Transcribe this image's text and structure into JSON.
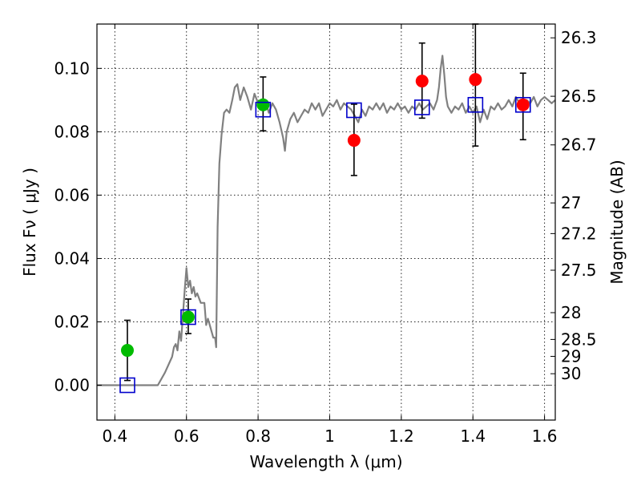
{
  "chart_data": {
    "type": "scatter",
    "xlabel": "Wavelength  λ (μm)",
    "ylabel": "Flux  Fν  ( μJy )",
    "ylabel_right": "Magnitude (AB)",
    "xlim": [
      0.35,
      1.63
    ],
    "ylim": [
      -0.011,
      0.114
    ],
    "x_ticks": [
      0.4,
      0.6,
      0.8,
      1.0,
      1.2,
      1.4,
      1.6
    ],
    "x_tick_labels": [
      "0.4",
      "0.6",
      "0.8",
      "1",
      "1.2",
      "1.4",
      "1.6"
    ],
    "y_ticks": [
      0.0,
      0.02,
      0.04,
      0.06,
      0.08,
      0.1
    ],
    "y_tick_labels": [
      "0.00",
      "0.02",
      "0.04",
      "0.06",
      "0.08",
      "0.10"
    ],
    "right_ticks": [
      {
        "label": "26.3",
        "mag": 26.3
      },
      {
        "label": "26.5",
        "mag": 26.5
      },
      {
        "label": "26.7",
        "mag": 26.7
      },
      {
        "label": "27",
        "mag": 27.0
      },
      {
        "label": "27.2",
        "mag": 27.2
      },
      {
        "label": "27.5",
        "mag": 27.5
      },
      {
        "label": "28",
        "mag": 28.0
      },
      {
        "label": "28.5",
        "mag": 28.5
      },
      {
        "label": "29",
        "mag": 29.0
      },
      {
        "label": "30",
        "mag": 30.0
      }
    ],
    "grid": true,
    "model_spectrum": {
      "color": "#808080",
      "points": [
        [
          0.35,
          0.0
        ],
        [
          0.52,
          0.0
        ],
        [
          0.54,
          0.004
        ],
        [
          0.56,
          0.009
        ],
        [
          0.565,
          0.012
        ],
        [
          0.57,
          0.013
        ],
        [
          0.575,
          0.011
        ],
        [
          0.58,
          0.017
        ],
        [
          0.585,
          0.014
        ],
        [
          0.59,
          0.022
        ],
        [
          0.595,
          0.03
        ],
        [
          0.6,
          0.037
        ],
        [
          0.605,
          0.031
        ],
        [
          0.61,
          0.033
        ],
        [
          0.615,
          0.029
        ],
        [
          0.62,
          0.031
        ],
        [
          0.625,
          0.028
        ],
        [
          0.63,
          0.029
        ],
        [
          0.64,
          0.026
        ],
        [
          0.65,
          0.026
        ],
        [
          0.655,
          0.019
        ],
        [
          0.66,
          0.021
        ],
        [
          0.665,
          0.019
        ],
        [
          0.67,
          0.017
        ],
        [
          0.675,
          0.015
        ],
        [
          0.68,
          0.015
        ],
        [
          0.683,
          0.012
        ],
        [
          0.687,
          0.05
        ],
        [
          0.692,
          0.07
        ],
        [
          0.698,
          0.079
        ],
        [
          0.705,
          0.086
        ],
        [
          0.712,
          0.087
        ],
        [
          0.72,
          0.086
        ],
        [
          0.728,
          0.09
        ],
        [
          0.735,
          0.094
        ],
        [
          0.742,
          0.095
        ],
        [
          0.75,
          0.09
        ],
        [
          0.76,
          0.094
        ],
        [
          0.77,
          0.091
        ],
        [
          0.78,
          0.087
        ],
        [
          0.79,
          0.092
        ],
        [
          0.8,
          0.089
        ],
        [
          0.81,
          0.087
        ],
        [
          0.82,
          0.09
        ],
        [
          0.83,
          0.086
        ],
        [
          0.84,
          0.089
        ],
        [
          0.85,
          0.087
        ],
        [
          0.86,
          0.083
        ],
        [
          0.87,
          0.078
        ],
        [
          0.875,
          0.074
        ],
        [
          0.88,
          0.08
        ],
        [
          0.89,
          0.084
        ],
        [
          0.9,
          0.086
        ],
        [
          0.91,
          0.083
        ],
        [
          0.92,
          0.085
        ],
        [
          0.93,
          0.087
        ],
        [
          0.94,
          0.086
        ],
        [
          0.95,
          0.089
        ],
        [
          0.96,
          0.087
        ],
        [
          0.97,
          0.089
        ],
        [
          0.98,
          0.085
        ],
        [
          0.99,
          0.087
        ],
        [
          1.0,
          0.089
        ],
        [
          1.01,
          0.088
        ],
        [
          1.02,
          0.09
        ],
        [
          1.03,
          0.087
        ],
        [
          1.04,
          0.089
        ],
        [
          1.05,
          0.088
        ],
        [
          1.06,
          0.087
        ],
        [
          1.07,
          0.085
        ],
        [
          1.08,
          0.083
        ],
        [
          1.09,
          0.087
        ],
        [
          1.1,
          0.085
        ],
        [
          1.11,
          0.088
        ],
        [
          1.12,
          0.087
        ],
        [
          1.13,
          0.089
        ],
        [
          1.14,
          0.087
        ],
        [
          1.15,
          0.089
        ],
        [
          1.16,
          0.086
        ],
        [
          1.17,
          0.088
        ],
        [
          1.18,
          0.087
        ],
        [
          1.19,
          0.089
        ],
        [
          1.2,
          0.087
        ],
        [
          1.21,
          0.088
        ],
        [
          1.22,
          0.086
        ],
        [
          1.23,
          0.088
        ],
        [
          1.24,
          0.087
        ],
        [
          1.25,
          0.089
        ],
        [
          1.26,
          0.087
        ],
        [
          1.27,
          0.088
        ],
        [
          1.28,
          0.089
        ],
        [
          1.29,
          0.087
        ],
        [
          1.3,
          0.09
        ],
        [
          1.305,
          0.094
        ],
        [
          1.31,
          0.1
        ],
        [
          1.315,
          0.104
        ],
        [
          1.32,
          0.098
        ],
        [
          1.325,
          0.091
        ],
        [
          1.33,
          0.088
        ],
        [
          1.34,
          0.086
        ],
        [
          1.35,
          0.088
        ],
        [
          1.36,
          0.087
        ],
        [
          1.37,
          0.089
        ],
        [
          1.38,
          0.086
        ],
        [
          1.39,
          0.088
        ],
        [
          1.4,
          0.086
        ],
        [
          1.41,
          0.088
        ],
        [
          1.42,
          0.083
        ],
        [
          1.43,
          0.087
        ],
        [
          1.44,
          0.084
        ],
        [
          1.45,
          0.088
        ],
        [
          1.46,
          0.087
        ],
        [
          1.47,
          0.089
        ],
        [
          1.48,
          0.087
        ],
        [
          1.49,
          0.088
        ],
        [
          1.5,
          0.09
        ],
        [
          1.51,
          0.088
        ],
        [
          1.52,
          0.091
        ],
        [
          1.53,
          0.089
        ],
        [
          1.54,
          0.088
        ],
        [
          1.55,
          0.09
        ],
        [
          1.56,
          0.089
        ],
        [
          1.57,
          0.091
        ],
        [
          1.58,
          0.088
        ],
        [
          1.59,
          0.09
        ],
        [
          1.6,
          0.091
        ],
        [
          1.61,
          0.09
        ],
        [
          1.62,
          0.089
        ],
        [
          1.63,
          0.09
        ]
      ]
    },
    "series": [
      {
        "marker": "circle",
        "color": "#00bb00",
        "points": [
          {
            "x": 0.435,
            "y": 0.011,
            "err_low": 0.0015,
            "err_high": 0.0205
          },
          {
            "x": 0.605,
            "y": 0.0215,
            "err_low": 0.0163,
            "err_high": 0.0272
          },
          {
            "x": 0.814,
            "y": 0.0885,
            "err_low": 0.0803,
            "err_high": 0.0973
          }
        ]
      },
      {
        "marker": "circle",
        "color": "#ff0000",
        "points": [
          {
            "x": 1.068,
            "y": 0.0773,
            "err_low": 0.0662,
            "err_high": 0.0887
          },
          {
            "x": 1.258,
            "y": 0.096,
            "err_low": 0.0843,
            "err_high": 0.108
          },
          {
            "x": 1.407,
            "y": 0.0965,
            "err_low": 0.0755,
            "err_high": 0.114
          },
          {
            "x": 1.54,
            "y": 0.0885,
            "err_low": 0.0775,
            "err_high": 0.0985
          }
        ]
      },
      {
        "marker": "square",
        "color": "#0000cc",
        "points": [
          {
            "x": 0.435,
            "y": 0.0
          },
          {
            "x": 0.605,
            "y": 0.0215
          },
          {
            "x": 0.814,
            "y": 0.087
          },
          {
            "x": 1.068,
            "y": 0.0868
          },
          {
            "x": 1.258,
            "y": 0.0877
          },
          {
            "x": 1.407,
            "y": 0.0885
          },
          {
            "x": 1.54,
            "y": 0.0885
          }
        ]
      }
    ]
  }
}
